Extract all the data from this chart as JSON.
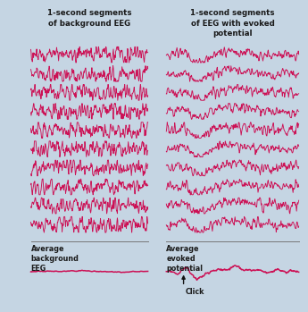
{
  "background_color": "#c5d5e3",
  "line_color": "#cc1155",
  "title_left": "1-second segments\nof background EEG",
  "title_right": "1-second segments\nof EEG with evoked\npotential",
  "label_left": "Average\nbackground\nEEG",
  "label_right": "Average\nevoked\npotential",
  "click_label": "Click",
  "n_traces": 10,
  "n_points": 300,
  "text_color": "#1a1a1a",
  "separator_color": "#777777",
  "arrow_color": "#111111",
  "lw_trace": 0.65,
  "lw_avg": 1.1
}
